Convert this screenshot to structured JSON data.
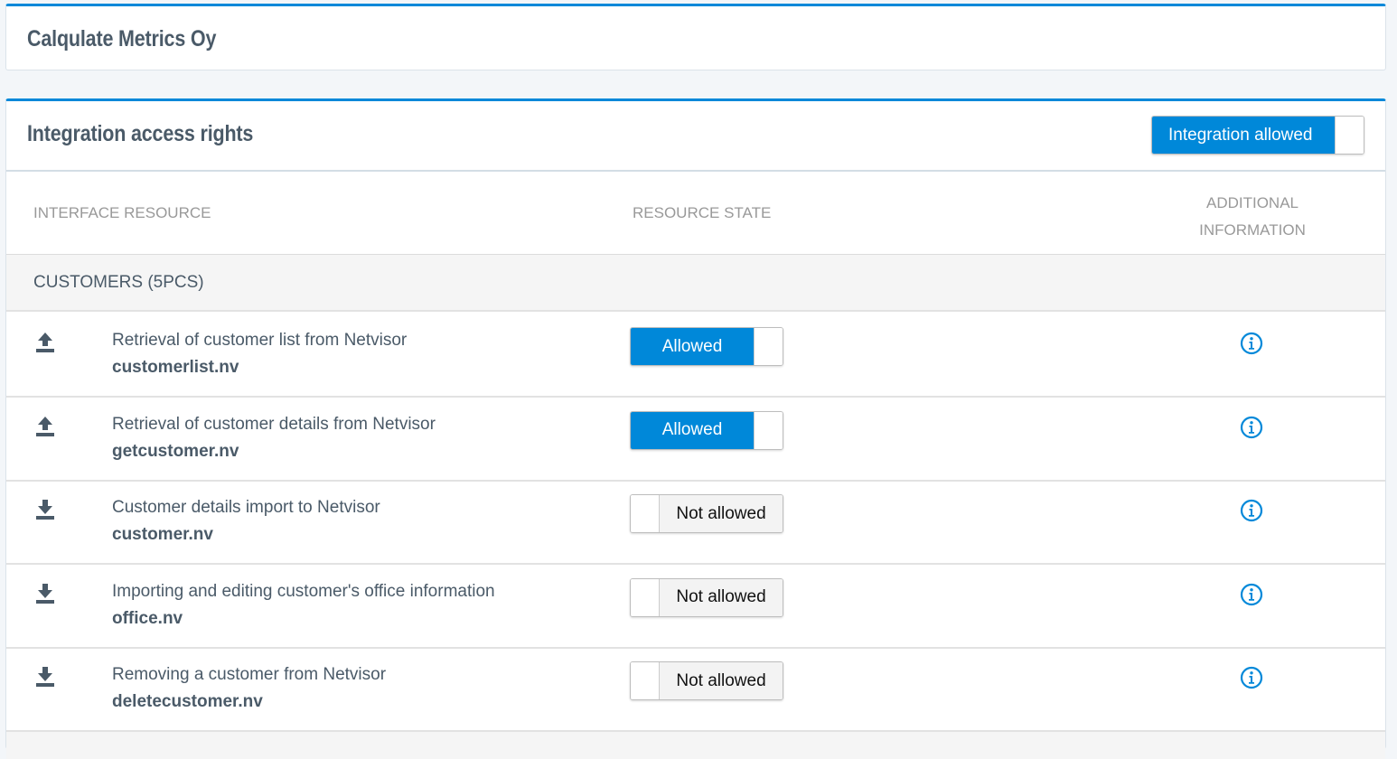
{
  "company": {
    "title": "Calqulate Metrics Oy"
  },
  "section": {
    "title": "Integration access rights",
    "integration_toggle": {
      "label": "Integration allowed",
      "on": true
    }
  },
  "columns": {
    "resource": "INTERFACE RESOURCE",
    "state": "RESOURCE STATE",
    "info_line1": "ADDITIONAL",
    "info_line2": "INFORMATION"
  },
  "group": {
    "label": "CUSTOMERS (5PCS)"
  },
  "rows": [
    {
      "icon": "upload-icon",
      "desc": "Retrieval of customer list from Netvisor",
      "file": "customerlist.nv",
      "state": "Allowed",
      "on": true
    },
    {
      "icon": "upload-icon",
      "desc": "Retrieval of customer details from Netvisor",
      "file": "getcustomer.nv",
      "state": "Allowed",
      "on": true
    },
    {
      "icon": "download-icon",
      "desc": "Customer details import to Netvisor",
      "file": "customer.nv",
      "state": "Not allowed",
      "on": false
    },
    {
      "icon": "download-icon",
      "desc": "Importing and editing customer's office information",
      "file": "office.nv",
      "state": "Not allowed",
      "on": false
    },
    {
      "icon": "download-icon",
      "desc": "Removing a customer from Netvisor",
      "file": "deletecustomer.nv",
      "state": "Not allowed",
      "on": false
    }
  ],
  "colors": {
    "accent": "#0088d9",
    "text": "#4a5a68"
  }
}
